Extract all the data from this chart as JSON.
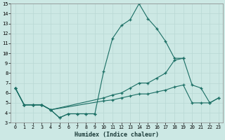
{
  "xlabel": "Humidex (Indice chaleur)",
  "xlim": [
    -0.5,
    23.5
  ],
  "ylim": [
    3,
    15
  ],
  "xticks": [
    0,
    1,
    2,
    3,
    4,
    5,
    6,
    7,
    8,
    9,
    10,
    11,
    12,
    13,
    14,
    15,
    16,
    17,
    18,
    19,
    20,
    21,
    22,
    23
  ],
  "yticks": [
    3,
    4,
    5,
    6,
    7,
    8,
    9,
    10,
    11,
    12,
    13,
    14,
    15
  ],
  "bg_color": "#cce8e4",
  "grid_color": "#b8d8d4",
  "line_color": "#1a6e64",
  "lines": [
    {
      "x": [
        0,
        1,
        2,
        3,
        4,
        5,
        6,
        7,
        8,
        9,
        10,
        11,
        12,
        13,
        14,
        15,
        16,
        17,
        18,
        19,
        20,
        21,
        22,
        23
      ],
      "y": [
        6.5,
        4.8,
        4.8,
        4.8,
        4.3,
        3.5,
        3.9,
        3.9,
        3.9,
        3.9,
        8.2,
        11.5,
        12.8,
        13.4,
        15.0,
        13.5,
        12.5,
        11.2,
        9.5,
        9.5,
        null,
        null,
        null,
        null
      ]
    },
    {
      "x": [
        0,
        1,
        2,
        3,
        4,
        10,
        11,
        12,
        13,
        14,
        15,
        16,
        17,
        18,
        19,
        20,
        21,
        22,
        23
      ],
      "y": [
        6.5,
        4.8,
        4.8,
        4.8,
        4.3,
        5.5,
        5.8,
        6.0,
        6.5,
        7.0,
        7.0,
        7.5,
        8.0,
        9.3,
        9.5,
        6.8,
        6.5,
        5.0,
        5.5
      ]
    },
    {
      "x": [
        0,
        1,
        2,
        3,
        4,
        10,
        11,
        12,
        13,
        14,
        15,
        16,
        17,
        18,
        19,
        20,
        21,
        22,
        23
      ],
      "y": [
        6.5,
        4.8,
        4.8,
        4.8,
        4.3,
        5.2,
        5.3,
        5.5,
        5.7,
        5.9,
        5.9,
        6.1,
        6.3,
        6.6,
        6.8,
        5.0,
        5.0,
        5.0,
        5.5
      ]
    },
    {
      "x": [
        0,
        1,
        2,
        3,
        4,
        5,
        6,
        7,
        8,
        9
      ],
      "y": [
        6.5,
        4.8,
        4.8,
        4.8,
        4.3,
        3.5,
        3.9,
        3.9,
        3.9,
        3.9
      ]
    }
  ]
}
